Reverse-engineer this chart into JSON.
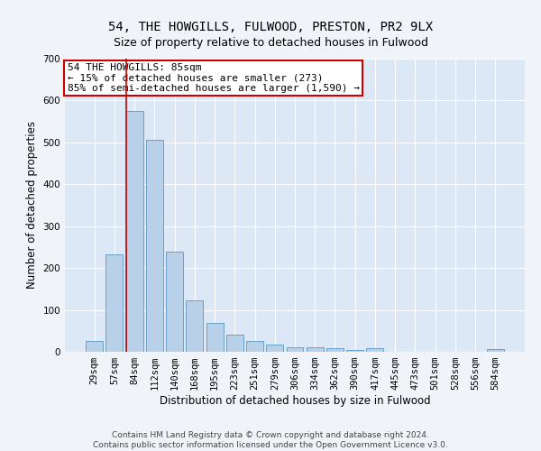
{
  "title": "54, THE HOWGILLS, FULWOOD, PRESTON, PR2 9LX",
  "subtitle": "Size of property relative to detached houses in Fulwood",
  "xlabel": "Distribution of detached houses by size in Fulwood",
  "ylabel": "Number of detached properties",
  "footer_line1": "Contains HM Land Registry data © Crown copyright and database right 2024.",
  "footer_line2": "Contains public sector information licensed under the Open Government Licence v3.0.",
  "categories": [
    "29sqm",
    "57sqm",
    "84sqm",
    "112sqm",
    "140sqm",
    "168sqm",
    "195sqm",
    "223sqm",
    "251sqm",
    "279sqm",
    "306sqm",
    "334sqm",
    "362sqm",
    "390sqm",
    "417sqm",
    "445sqm",
    "473sqm",
    "501sqm",
    "528sqm",
    "556sqm",
    "584sqm"
  ],
  "values": [
    25,
    232,
    575,
    507,
    240,
    123,
    70,
    40,
    25,
    18,
    10,
    10,
    8,
    5,
    8,
    0,
    0,
    0,
    0,
    0,
    7
  ],
  "bar_color": "#b8d0e8",
  "bar_edge_color": "#6aa0c8",
  "annotation_line1": "54 THE HOWGILLS: 85sqm",
  "annotation_line2": "← 15% of detached houses are smaller (273)",
  "annotation_line3": "85% of semi-detached houses are larger (1,590) →",
  "annotation_box_color": "#ffffff",
  "annotation_box_edge_color": "#cc0000",
  "vline_color": "#cc0000",
  "vline_x_index": 2,
  "ylim": [
    0,
    700
  ],
  "yticks": [
    0,
    100,
    200,
    300,
    400,
    500,
    600,
    700
  ],
  "background_color": "#dce8f5",
  "grid_color": "#ffffff",
  "title_fontsize": 10,
  "subtitle_fontsize": 9,
  "axis_label_fontsize": 8.5,
  "tick_fontsize": 7.5,
  "annotation_fontsize": 8,
  "footer_fontsize": 6.5
}
